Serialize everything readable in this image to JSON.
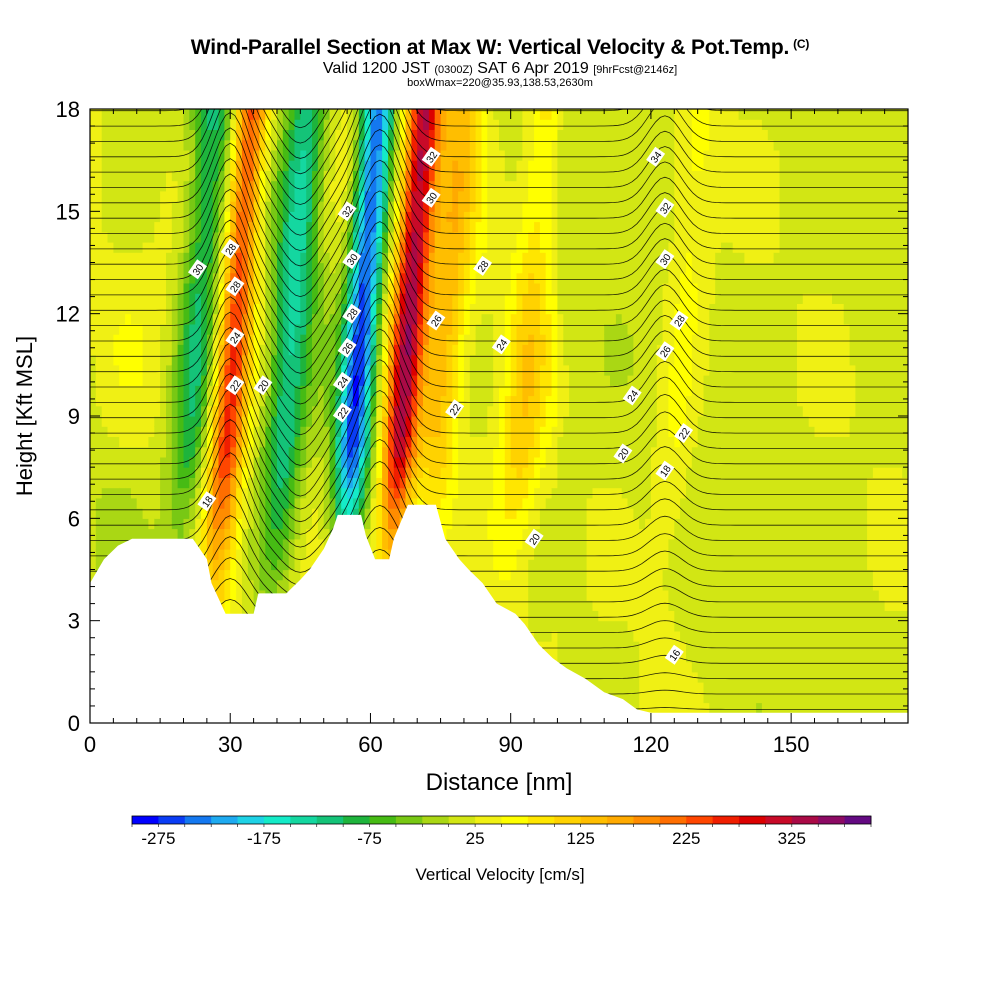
{
  "header": {
    "title": "Wind-Parallel Section at Max W: Vertical Velocity & Pot.Temp.",
    "copyright": "(C)",
    "valid_prefix": "Valid 1200 JST",
    "valid_utc": "(0300Z)",
    "valid_date": "SAT 6 Apr 2019",
    "forecast": "[9hrFcst@2146z]",
    "box_info": "boxWmax=220@35.93,138.53,2630m"
  },
  "chart_data": {
    "type": "heatmap",
    "xlabel": "Distance [nm]",
    "ylabel": "Height [Kft MSL]",
    "xlim": [
      0,
      175
    ],
    "ylim": [
      0,
      18
    ],
    "x_ticks": [
      0,
      30,
      60,
      90,
      120,
      150
    ],
    "y_ticks": [
      0,
      3,
      6,
      9,
      12,
      15,
      18
    ],
    "colorbar": {
      "label": "Vertical Velocity [cm/s]",
      "tick_labels": [
        "-275",
        "-175",
        "-75",
        "25",
        "125",
        "225",
        "325"
      ],
      "colors": [
        "#0000ff",
        "#0a3cf5",
        "#1478f0",
        "#1eaaf0",
        "#1ed2e6",
        "#14ebc8",
        "#14d7a0",
        "#14c378",
        "#1eb43c",
        "#46bb14",
        "#78c814",
        "#aad714",
        "#d2e614",
        "#f0f014",
        "#ffff00",
        "#ffe600",
        "#ffd200",
        "#ffbe00",
        "#ffaa00",
        "#ff8c00",
        "#ff6e00",
        "#ff4600",
        "#f01e00",
        "#dc0000",
        "#c80a28",
        "#aa0a46",
        "#8c0a64",
        "#640a82"
      ]
    },
    "updraft_bands": [
      {
        "x_center": 28,
        "peak": 250
      },
      {
        "x_center": 65,
        "peak": 325
      },
      {
        "x_center": 73,
        "peak": 125
      },
      {
        "x_center": 124,
        "peak": 100
      },
      {
        "x_center": 91,
        "peak": 100
      }
    ],
    "downdraft_bands": [
      {
        "x_center": 55,
        "peak": -250
      },
      {
        "x_center": 40,
        "peak": -125
      },
      {
        "x_center": 20,
        "peak": -100
      }
    ],
    "terrain_profile": [
      [
        0,
        4.1
      ],
      [
        3,
        4.8
      ],
      [
        6,
        5.2
      ],
      [
        9,
        5.4
      ],
      [
        22,
        5.4
      ],
      [
        25,
        4.8
      ],
      [
        26,
        4.1
      ],
      [
        29,
        3.2
      ],
      [
        35,
        3.2
      ],
      [
        36,
        3.8
      ],
      [
        42,
        3.8
      ],
      [
        45,
        4.2
      ],
      [
        47,
        4.5
      ],
      [
        50,
        5.1
      ],
      [
        52,
        5.7
      ],
      [
        53,
        6.1
      ],
      [
        58,
        6.1
      ],
      [
        59,
        5.5
      ],
      [
        61,
        4.8
      ],
      [
        64,
        4.8
      ],
      [
        65,
        5.4
      ],
      [
        68,
        6.4
      ],
      [
        74,
        6.4
      ],
      [
        76,
        5.4
      ],
      [
        79,
        4.8
      ],
      [
        81,
        4.5
      ],
      [
        84,
        4.1
      ],
      [
        87,
        3.5
      ],
      [
        91,
        3.2
      ],
      [
        93,
        2.9
      ],
      [
        96,
        2.3
      ],
      [
        99,
        1.9
      ],
      [
        102,
        1.6
      ],
      [
        106,
        1.3
      ],
      [
        110,
        0.9
      ],
      [
        114,
        0.7
      ],
      [
        117,
        0.4
      ],
      [
        120,
        0.3
      ],
      [
        175,
        0.3
      ]
    ],
    "isentrope_labels": [
      {
        "x": 23,
        "y": 13.3,
        "label": "30"
      },
      {
        "x": 30,
        "y": 13.9,
        "label": "28"
      },
      {
        "x": 31,
        "y": 12.8,
        "label": "28"
      },
      {
        "x": 31,
        "y": 11.3,
        "label": "24"
      },
      {
        "x": 31,
        "y": 9.9,
        "label": "22"
      },
      {
        "x": 37,
        "y": 9.9,
        "label": "20"
      },
      {
        "x": 25,
        "y": 6.5,
        "label": "18"
      },
      {
        "x": 55,
        "y": 15.0,
        "label": "32"
      },
      {
        "x": 56,
        "y": 13.6,
        "label": "30"
      },
      {
        "x": 56,
        "y": 12.0,
        "label": "28"
      },
      {
        "x": 55,
        "y": 11.0,
        "label": "26"
      },
      {
        "x": 54,
        "y": 10.0,
        "label": "24"
      },
      {
        "x": 54,
        "y": 9.1,
        "label": "22"
      },
      {
        "x": 73,
        "y": 16.6,
        "label": "32"
      },
      {
        "x": 73,
        "y": 15.4,
        "label": "30"
      },
      {
        "x": 84,
        "y": 13.4,
        "label": "28"
      },
      {
        "x": 74,
        "y": 11.8,
        "label": "26"
      },
      {
        "x": 88,
        "y": 11.1,
        "label": "24"
      },
      {
        "x": 78,
        "y": 9.2,
        "label": "22"
      },
      {
        "x": 95,
        "y": 5.4,
        "label": "20"
      },
      {
        "x": 121,
        "y": 16.6,
        "label": "34"
      },
      {
        "x": 123,
        "y": 15.1,
        "label": "32"
      },
      {
        "x": 123,
        "y": 13.6,
        "label": "30"
      },
      {
        "x": 126,
        "y": 11.8,
        "label": "28"
      },
      {
        "x": 123,
        "y": 10.9,
        "label": "26"
      },
      {
        "x": 116,
        "y": 9.6,
        "label": "24"
      },
      {
        "x": 127,
        "y": 8.5,
        "label": "22"
      },
      {
        "x": 114,
        "y": 7.9,
        "label": "20"
      },
      {
        "x": 123,
        "y": 7.4,
        "label": "18"
      },
      {
        "x": 125,
        "y": 2.0,
        "label": "16"
      }
    ]
  }
}
